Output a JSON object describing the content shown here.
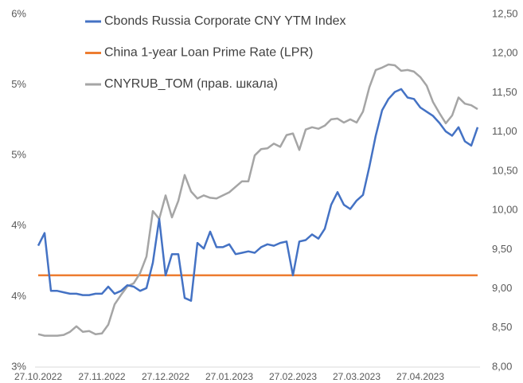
{
  "chart_data": {
    "type": "line",
    "legend": "upper left",
    "categories": [
      "27.10.2022",
      null,
      null,
      null,
      null,
      null,
      null,
      null,
      null,
      null,
      "27.11.2022",
      null,
      null,
      null,
      null,
      null,
      null,
      null,
      null,
      null,
      "27.12.2022",
      null,
      null,
      null,
      null,
      null,
      null,
      null,
      null,
      null,
      "27.01.2023",
      null,
      null,
      null,
      null,
      null,
      null,
      null,
      null,
      null,
      "27.02.2023",
      null,
      null,
      null,
      null,
      null,
      null,
      null,
      null,
      null,
      "27.03.2023",
      null,
      null,
      null,
      null,
      null,
      null,
      null,
      null,
      null,
      "27.04.2023",
      null,
      null,
      null,
      null,
      null,
      null,
      null,
      null,
      null
    ],
    "series": [
      {
        "name": "Cbonds Russia Corporate CNY YTM Index",
        "color": "#4472c4",
        "values": [
          3.86,
          3.95,
          3.54,
          3.54,
          3.53,
          3.52,
          3.52,
          3.51,
          3.51,
          3.52,
          3.52,
          3.57,
          3.52,
          3.54,
          3.58,
          3.57,
          3.54,
          3.56,
          3.74,
          4.05,
          3.65,
          3.8,
          3.8,
          3.49,
          3.47,
          3.88,
          3.84,
          3.96,
          3.85,
          3.85,
          3.87,
          3.8,
          3.81,
          3.82,
          3.81,
          3.85,
          3.87,
          3.86,
          3.88,
          3.89,
          3.65,
          3.89,
          3.9,
          3.94,
          3.91,
          3.98,
          4.15,
          4.24,
          4.15,
          4.12,
          4.18,
          4.22,
          4.42,
          4.64,
          4.82,
          4.9,
          4.95,
          4.97,
          4.91,
          4.9,
          4.84,
          4.81,
          4.78,
          4.73,
          4.67,
          4.64,
          4.7,
          4.6,
          4.57,
          4.7
        ]
      },
      {
        "name": "China 1-year Loan Prime Rate (LPR)",
        "color": "#ed7d31",
        "values": [
          3.65,
          3.65,
          3.65,
          3.65,
          3.65,
          3.65,
          3.65,
          3.65,
          3.65,
          3.65,
          3.65,
          3.65,
          3.65,
          3.65,
          3.65,
          3.65,
          3.65,
          3.65,
          3.65,
          3.65,
          3.65,
          3.65,
          3.65,
          3.65,
          3.65,
          3.65,
          3.65,
          3.65,
          3.65,
          3.65,
          3.65,
          3.65,
          3.65,
          3.65,
          3.65,
          3.65,
          3.65,
          3.65,
          3.65,
          3.65,
          3.65,
          3.65,
          3.65,
          3.65,
          3.65,
          3.65,
          3.65,
          3.65,
          3.65,
          3.65,
          3.65,
          3.65,
          3.65,
          3.65,
          3.65,
          3.65,
          3.65,
          3.65,
          3.65,
          3.65,
          3.65,
          3.65,
          3.65,
          3.65,
          3.65,
          3.65,
          3.65,
          3.65,
          3.65,
          3.65
        ]
      },
      {
        "name": "CNYRUB_TOM (прав. шкала)",
        "color": "#a5a5a5",
        "axis": "y2",
        "values": [
          8.42,
          8.4,
          8.4,
          8.4,
          8.41,
          8.45,
          8.52,
          8.45,
          8.46,
          8.42,
          8.43,
          8.54,
          8.8,
          8.92,
          9.03,
          9.07,
          9.2,
          9.41,
          9.99,
          9.89,
          10.19,
          9.91,
          10.12,
          10.45,
          10.24,
          10.15,
          10.19,
          10.16,
          10.15,
          10.19,
          10.23,
          10.3,
          10.37,
          10.37,
          10.7,
          10.78,
          10.79,
          10.85,
          10.81,
          10.96,
          10.98,
          10.77,
          11.03,
          11.06,
          11.04,
          11.08,
          11.16,
          11.17,
          11.12,
          11.16,
          11.12,
          11.26,
          11.57,
          11.79,
          11.82,
          11.86,
          11.85,
          11.78,
          11.79,
          11.77,
          11.7,
          11.59,
          11.38,
          11.24,
          11.11,
          11.21,
          11.44,
          11.36,
          11.34,
          11.29
        ]
      }
    ],
    "ylim": [
      3,
      5.5
    ],
    "yticks": [
      {
        "value": 3,
        "label": "3%"
      },
      {
        "value": 3.5,
        "label": "4%"
      },
      {
        "value": 4,
        "label": "4%"
      },
      {
        "value": 4.5,
        "label": "5%"
      },
      {
        "value": 5,
        "label": "5%"
      },
      {
        "value": 5.5,
        "label": "6%"
      }
    ],
    "y2lim": [
      8,
      12.5
    ],
    "y2ticks": [
      {
        "value": 8,
        "label": "8,00"
      },
      {
        "value": 8.5,
        "label": "8,50"
      },
      {
        "value": 9,
        "label": "9,00"
      },
      {
        "value": 9.5,
        "label": "9,50"
      },
      {
        "value": 10,
        "label": "10,00"
      },
      {
        "value": 10.5,
        "label": "10,50"
      },
      {
        "value": 11,
        "label": "11,00"
      },
      {
        "value": 11.5,
        "label": "11,50"
      },
      {
        "value": 12,
        "label": "12,00"
      },
      {
        "value": 12.5,
        "label": "12,50"
      }
    ]
  }
}
